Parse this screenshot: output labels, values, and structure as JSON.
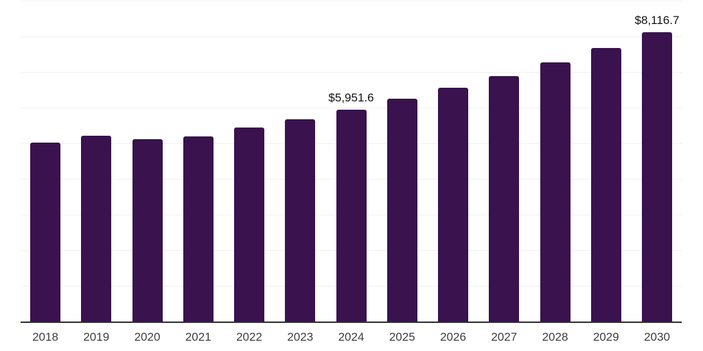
{
  "chart_data": {
    "type": "bar",
    "title": "",
    "xlabel": "",
    "ylabel": "",
    "categories": [
      "2018",
      "2019",
      "2020",
      "2021",
      "2022",
      "2023",
      "2024",
      "2025",
      "2026",
      "2027",
      "2028",
      "2029",
      "2030"
    ],
    "values": [
      5025,
      5205,
      5110,
      5190,
      5445,
      5670,
      5951.6,
      6250,
      6550,
      6890,
      7265,
      7670,
      8116.7
    ],
    "data_labels": [
      {
        "index": 6,
        "text": "$5,951.6"
      },
      {
        "index": 12,
        "text": "$8,116.7"
      }
    ],
    "ylim": [
      0,
      9000
    ],
    "grid_step": 1000,
    "grid": true,
    "legend": false,
    "colors": {
      "bar": "#39124E",
      "grid": "#f0f0f0",
      "axis": "#2d2d2d",
      "xtick_text": "#3d3d3d",
      "value_label_text": "#111111",
      "background": "#ffffff"
    }
  }
}
